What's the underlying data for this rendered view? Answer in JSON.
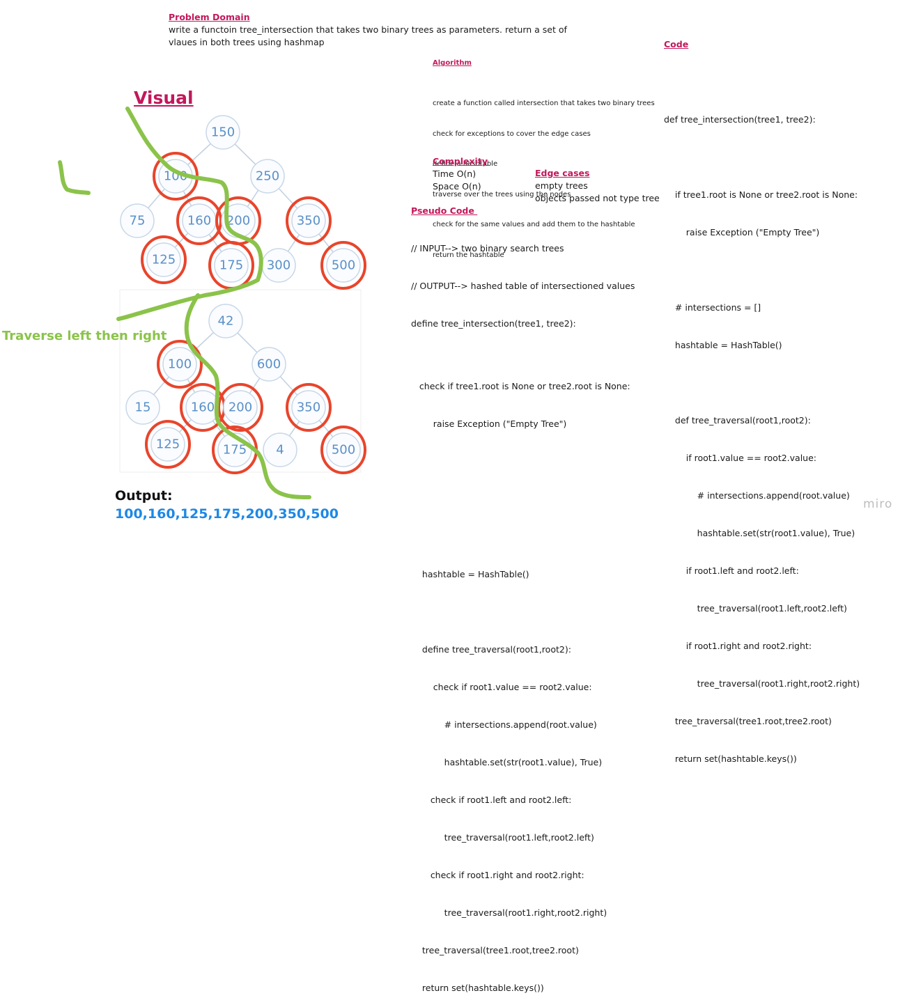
{
  "problem": {
    "heading": "Problem Domain",
    "line1": "write a functoin tree_intersection that takes two binary trees as parameters. return a set of",
    "line2": "vlaues in both trees using hashmap"
  },
  "algorithm": {
    "heading": "Algorithm",
    "lines": [
      "create a function called intersection that takes two binary trees",
      "check for exceptions to cover the edge cases",
      "define a hashtable",
      "traverse over the trees using the nodes",
      "check for the same values and add them to the hashtable",
      "return the hashtable"
    ]
  },
  "complexity": {
    "heading": "Complexity",
    "time": "Time O(n)",
    "space": "Space O(n)"
  },
  "edge_cases": {
    "heading": "Edge cases",
    "lines": [
      "empty trees",
      "objects passed not type tree"
    ]
  },
  "pseudo": {
    "heading": "Pseudo Code ",
    "lines": [
      "// INPUT--> two binary search trees",
      "// OUTPUT--> hashed table of intersectioned values",
      "define tree_intersection(tree1, tree2):",
      "",
      "   check if tree1.root is None or tree2.root is None:",
      "        raise Exception (\"Empty Tree\")",
      "",
      "",
      "",
      "    hashtable = HashTable()",
      "",
      "    define tree_traversal(root1,root2):",
      "        check if root1.value == root2.value:",
      "            # intersections.append(root.value)",
      "            hashtable.set(str(root1.value), True)",
      "       check if root1.left and root2.left:",
      "            tree_traversal(root1.left,root2.left)",
      "       check if root1.right and root2.right:",
      "            tree_traversal(root1.right,root2.right)",
      "    tree_traversal(tree1.root,tree2.root)",
      "    return set(hashtable.keys())"
    ]
  },
  "code": {
    "heading": "Code",
    "lines": [
      "",
      "def tree_intersection(tree1, tree2):",
      "",
      "    if tree1.root is None or tree2.root is None:",
      "        raise Exception (\"Empty Tree\")",
      "",
      "    # intersections = []",
      "    hashtable = HashTable()",
      "",
      "    def tree_traversal(root1,root2):",
      "        if root1.value == root2.value:",
      "            # intersections.append(root.value)",
      "            hashtable.set(str(root1.value), True)",
      "        if root1.left and root2.left:",
      "            tree_traversal(root1.left,root2.left)",
      "        if root1.right and root2.right:",
      "            tree_traversal(root1.right,root2.right)",
      "    tree_traversal(tree1.root,tree2.root)",
      "    return set(hashtable.keys())"
    ]
  },
  "visual": {
    "heading": "Visual",
    "traverse_label": "Traverse left then right",
    "output_label": "Output:",
    "output_value": "100,160,125,175,200,350,500"
  },
  "tree1": {
    "nodes": [
      {
        "id": "t1-150",
        "value": "150",
        "circled": false
      },
      {
        "id": "t1-100",
        "value": "100",
        "circled": true
      },
      {
        "id": "t1-250",
        "value": "250",
        "circled": false
      },
      {
        "id": "t1-75",
        "value": "75",
        "circled": false
      },
      {
        "id": "t1-160",
        "value": "160",
        "circled": true
      },
      {
        "id": "t1-200",
        "value": "200",
        "circled": true
      },
      {
        "id": "t1-350",
        "value": "350",
        "circled": true
      },
      {
        "id": "t1-125",
        "value": "125",
        "circled": true
      },
      {
        "id": "t1-175",
        "value": "175",
        "circled": true
      },
      {
        "id": "t1-300",
        "value": "300",
        "circled": false
      },
      {
        "id": "t1-500",
        "value": "500",
        "circled": true
      }
    ]
  },
  "tree2": {
    "nodes": [
      {
        "id": "t2-42",
        "value": "42",
        "circled": false
      },
      {
        "id": "t2-100",
        "value": "100",
        "circled": true
      },
      {
        "id": "t2-600",
        "value": "600",
        "circled": false
      },
      {
        "id": "t2-15",
        "value": "15",
        "circled": false
      },
      {
        "id": "t2-160",
        "value": "160",
        "circled": true
      },
      {
        "id": "t2-200",
        "value": "200",
        "circled": true
      },
      {
        "id": "t2-350",
        "value": "350",
        "circled": true
      },
      {
        "id": "t2-125",
        "value": "125",
        "circled": true
      },
      {
        "id": "t2-175",
        "value": "175",
        "circled": true
      },
      {
        "id": "t2-4",
        "value": "4",
        "circled": false
      },
      {
        "id": "t2-500",
        "value": "500",
        "circled": true
      }
    ]
  },
  "colors": {
    "heading": "#c2185b",
    "marker_red": "#e8452c",
    "marker_green": "#8bc34a",
    "node_text": "#5a90c8",
    "output": "#1e88e5"
  },
  "brand": "miro"
}
